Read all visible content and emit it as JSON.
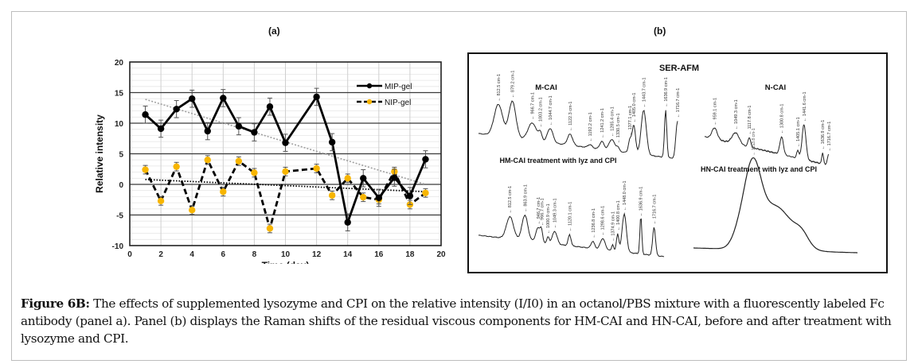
{
  "panel_labels": {
    "a": "(a)",
    "b": "(b)"
  },
  "chart_data": [
    {
      "type": "line",
      "panel": "(a)",
      "title": "",
      "xlabel": "Time (day)",
      "ylabel": "Relative intensity",
      "xlim": [
        0,
        20
      ],
      "ylim": [
        -10,
        20
      ],
      "xticks": [
        0,
        2,
        4,
        6,
        8,
        10,
        12,
        14,
        16,
        18,
        20
      ],
      "yticks": [
        -10,
        -5,
        0,
        5,
        10,
        15,
        20
      ],
      "grid": true,
      "legend_position": "top-right",
      "x": [
        1,
        2,
        3,
        4,
        5,
        6,
        7,
        8,
        9,
        10,
        12,
        13,
        14,
        15,
        16,
        17,
        18,
        19
      ],
      "series": [
        {
          "name": "MIP-gel",
          "style": "solid",
          "color": "#000000",
          "marker_color": "#000000",
          "values": [
            11.4,
            9.1,
            12.3,
            14.0,
            8.7,
            14.1,
            9.5,
            8.5,
            12.7,
            6.8,
            14.3,
            6.9,
            -6.2,
            1.0,
            -2.2,
            1.1,
            -1.9,
            4.1
          ],
          "error": [
            1.4,
            1.4,
            1.4,
            1.4,
            1.4,
            1.4,
            1.4,
            1.4,
            1.4,
            1.4,
            1.4,
            1.4,
            1.4,
            1.4,
            1.4,
            1.4,
            1.4,
            1.4
          ],
          "trendline": {
            "style": "dotted",
            "color": "#a0a0a0",
            "from": [
              1,
              13.9
            ],
            "to": [
              19,
              0.0
            ]
          }
        },
        {
          "name": "NIP-gel",
          "style": "dashed",
          "color": "#000000",
          "marker_color": "#f7b500",
          "values": [
            2.4,
            -2.7,
            2.9,
            -4.2,
            4.0,
            -1.2,
            3.8,
            1.9,
            -7.2,
            2.1,
            2.6,
            -1.8,
            1.0,
            -2.1,
            -2.5,
            2.1,
            -3.3,
            -1.4
          ],
          "error": [
            0.7,
            0.7,
            0.7,
            0.7,
            0.7,
            0.7,
            0.7,
            0.7,
            0.7,
            0.7,
            0.7,
            0.7,
            0.7,
            0.7,
            0.7,
            0.7,
            0.7,
            0.7
          ],
          "trendline": {
            "style": "dotted",
            "color": "#000000",
            "from": [
              1,
              0.8
            ],
            "to": [
              19,
              -1.2
            ]
          }
        }
      ]
    },
    {
      "type": "line",
      "panel": "(b)",
      "title": "SER-AFM",
      "subplots": [
        {
          "label": "M-CAI",
          "peaks": [
            "812.5 cm-1",
            "879.2 cm-1",
            "966.7 cm-1",
            "1003.2 cm-1",
            "1044.7 cm-1",
            "1122.3 cm-1",
            "1192.2 cm-1",
            "1241.2 cm-1",
            "1285.4 cm-1",
            "1330.5 cm-1",
            "1377.1 cm-1",
            "1405.0 cm-1",
            "1443.7 cm-1",
            "1636.9 cm-1",
            "1716.7 cm-1"
          ]
        },
        {
          "label": "N-CAI",
          "peaks": [
            "959.1 cm-1",
            "1049.3 cm-1",
            "1117.8 cm-1",
            "1300.8 cm-1",
            "1405.1 cm-1",
            "1441.6 cm-1",
            "1636.9 cm-1",
            "1716.7 cm-1"
          ]
        },
        {
          "label": "HM-CAI treatment with lyz and CPI",
          "peaks": [
            "812.5 cm-1",
            "863.9 cm-1",
            "946.7 cm-1",
            "966.7 cm-1",
            "1000.9 cm-1",
            "1049.3 cm-1",
            "1120.1 cm-1",
            "1236.8 cm-1",
            "1298.6 cm-1",
            "1374.9 cm-1",
            "1400.8 cm-1",
            "1448.0 cm-1",
            "1636.9 cm-1",
            "1716.7 cm-1"
          ]
        },
        {
          "label": "HN-CAI treatment with lyz and CPI",
          "peaks": [
            "1253.8 cm-1"
          ]
        }
      ]
    }
  ],
  "caption": {
    "label": "Figure 6B:",
    "text": " The effects of supplemented lysozyme and CPI on the relative intensity (I/I0) in an octanol/PBS mixture with a fluorescently labeled Fc antibody (panel a). Panel (b) displays the Raman shifts of the residual viscous components for HM-CAI and HN-CAI, before and after treatment with lysozyme and CPI."
  }
}
